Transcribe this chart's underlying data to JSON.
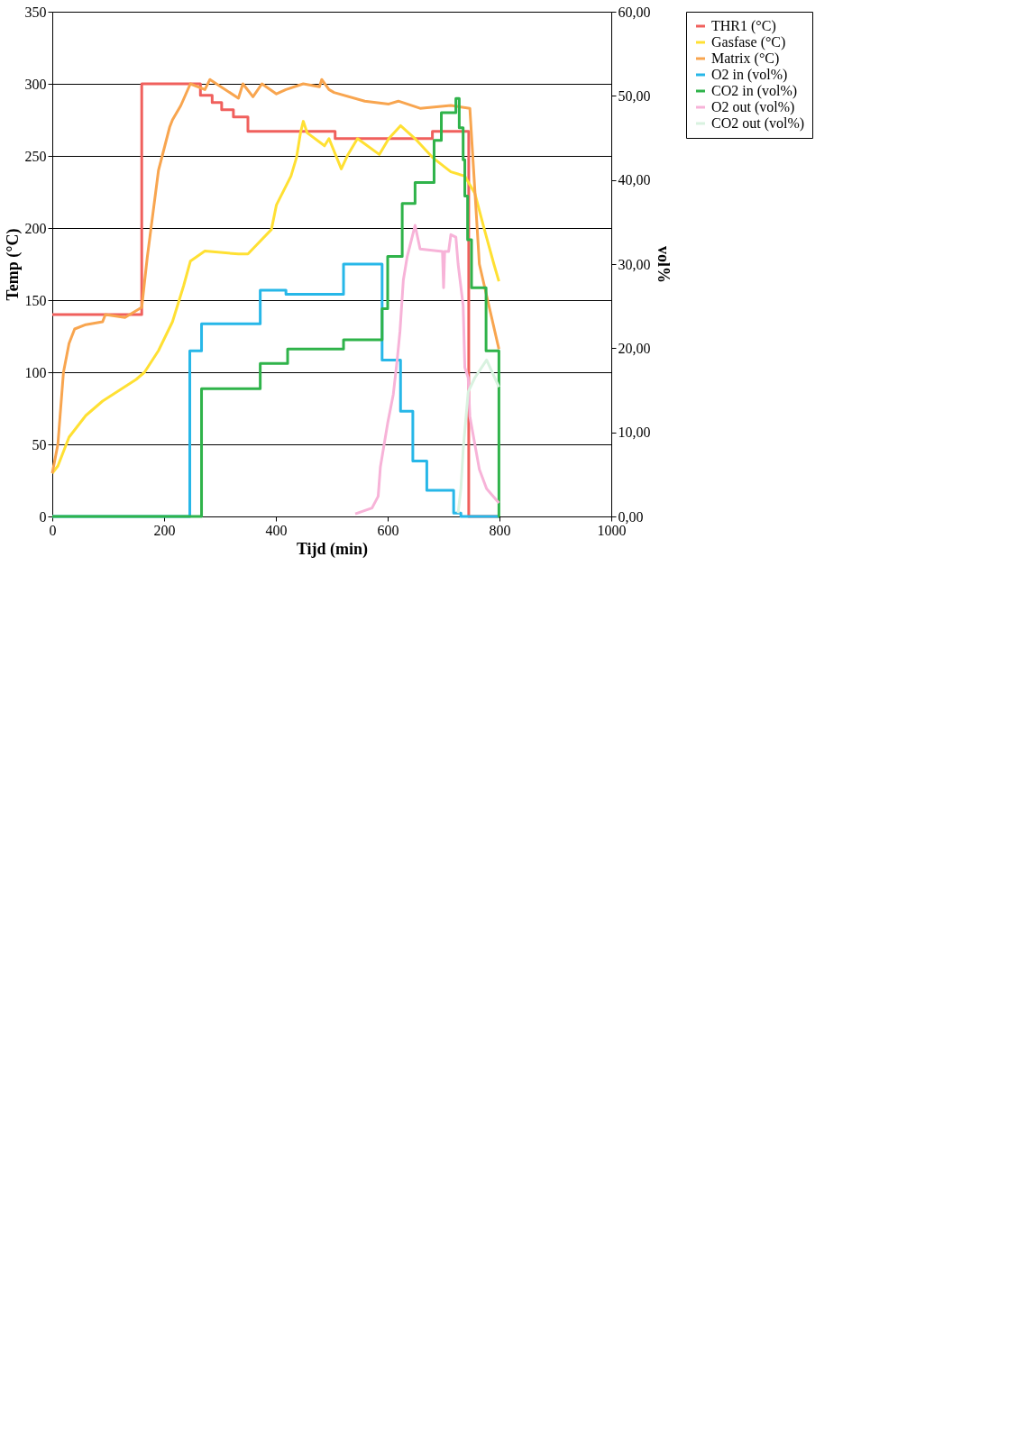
{
  "chart_data": {
    "type": "line",
    "xlabel": "Tijd (min)",
    "ylabel": "Temp (°C)",
    "y2label": "vol%",
    "xlim": [
      0,
      1000
    ],
    "xticks": [
      0,
      200,
      400,
      600,
      800,
      1000
    ],
    "ylim": [
      0,
      350
    ],
    "yticks": [
      0,
      50,
      100,
      150,
      200,
      250,
      300,
      350
    ],
    "y2lim": [
      0,
      60
    ],
    "y2ticks": [
      {
        "value": 0,
        "label": "0,00"
      },
      {
        "value": 10,
        "label": "10,00"
      },
      {
        "value": 20,
        "label": "20,00"
      },
      {
        "value": 30,
        "label": "30,00"
      },
      {
        "value": 40,
        "label": "40,00"
      },
      {
        "value": 50,
        "label": "50,00"
      },
      {
        "value": 60,
        "label": "60,00"
      }
    ],
    "grid": "y",
    "legend": "right",
    "line_style": "solid",
    "marker": "none",
    "series": [
      {
        "name": "THR1 (°C)",
        "type": "step",
        "color": "#f0605d",
        "x": [
          0,
          160,
          265,
          286,
          303,
          324,
          350,
          506,
          680,
          745,
          800
        ],
        "values": [
          140,
          300,
          292,
          287,
          282,
          277,
          267,
          262,
          267,
          0,
          0
        ]
      },
      {
        "name": "Gasfase (°C)",
        "color": "#ffe033",
        "x": [
          0,
          10,
          30,
          60,
          90,
          150,
          165,
          190,
          215,
          235,
          247,
          273,
          333,
          350,
          392,
          401,
          427,
          437,
          444,
          449,
          456,
          487,
          495,
          517,
          529,
          546,
          585,
          602,
          623,
          649,
          680,
          713,
          738,
          756,
          773,
          790,
          799
        ],
        "values": [
          30,
          35,
          55,
          70,
          80,
          95,
          100,
          115,
          135,
          160,
          177,
          184,
          182,
          182,
          199,
          216,
          236,
          249,
          266,
          274,
          266,
          257,
          262,
          241,
          251,
          262,
          251,
          262,
          271,
          262,
          249,
          239,
          236,
          224,
          199,
          175,
          163
        ]
      },
      {
        "name": "Matrix (°C)",
        "color": "#f8a54f",
        "x": [
          0,
          10,
          20,
          30,
          40,
          60,
          90,
          95,
          130,
          160,
          170,
          190,
          210,
          215,
          230,
          247,
          273,
          282,
          333,
          341,
          359,
          375,
          401,
          418,
          449,
          478,
          482,
          495,
          504,
          559,
          602,
          619,
          658,
          713,
          747,
          764,
          799
        ],
        "values": [
          30,
          50,
          100,
          120,
          130,
          133,
          135,
          140,
          138,
          145,
          180,
          240,
          270,
          275,
          285,
          300,
          296,
          303,
          290,
          300,
          291,
          300,
          293,
          296,
          300,
          298,
          303,
          296,
          294,
          288,
          286,
          288,
          283,
          285,
          283,
          175,
          116
        ]
      },
      {
        "name": "O2 in (vol%)",
        "type": "step",
        "axis": "y2",
        "color": "#27b7e8",
        "x": [
          0,
          246,
          267,
          372,
          418,
          521,
          590,
          623,
          645,
          670,
          718,
          731,
          800
        ],
        "values": [
          0,
          19.7,
          22.9,
          26.9,
          26.4,
          30.0,
          18.6,
          12.5,
          6.6,
          3.1,
          0.4,
          0,
          0
        ]
      },
      {
        "name": "CO2 in (vol%)",
        "type": "step",
        "axis": "y2",
        "color": "#2fb34a",
        "x": [
          0,
          267,
          372,
          421,
          521,
          590,
          600,
          626,
          649,
          683,
          696,
          722,
          728,
          735,
          738,
          743,
          750,
          776,
          799,
          800
        ],
        "values": [
          0,
          15.2,
          18.2,
          19.9,
          21.0,
          24.7,
          30.9,
          37.2,
          39.7,
          44.7,
          48.0,
          49.7,
          46.2,
          42.4,
          38.1,
          32.9,
          27.2,
          19.7,
          0,
          0
        ]
      },
      {
        "name": "O2 out (vol%)",
        "axis": "y2",
        "color": "#f7b3d8",
        "x": [
          542,
          572,
          583,
          587,
          600,
          610,
          617,
          622,
          628,
          635,
          649,
          658,
          698,
          700,
          702,
          709,
          713,
          722,
          726,
          728,
          735,
          738,
          744,
          747,
          764,
          777,
          799
        ],
        "values": [
          0.3,
          1.0,
          2.4,
          5.9,
          11.1,
          14.5,
          18.6,
          22.0,
          28.1,
          30.9,
          34.6,
          31.8,
          31.5,
          27.2,
          31.5,
          31.5,
          33.5,
          33.2,
          30.0,
          28.9,
          25.1,
          17.7,
          16.5,
          11.9,
          5.6,
          3.3,
          1.6
        ]
      },
      {
        "name": "CO2 out (vol%)",
        "axis": "y2",
        "color": "#d9f2e0",
        "x": [
          726,
          731,
          735,
          744,
          756,
          777,
          799
        ],
        "values": [
          0.4,
          3.3,
          7.9,
          14.8,
          16.5,
          18.6,
          15.4
        ]
      }
    ]
  }
}
